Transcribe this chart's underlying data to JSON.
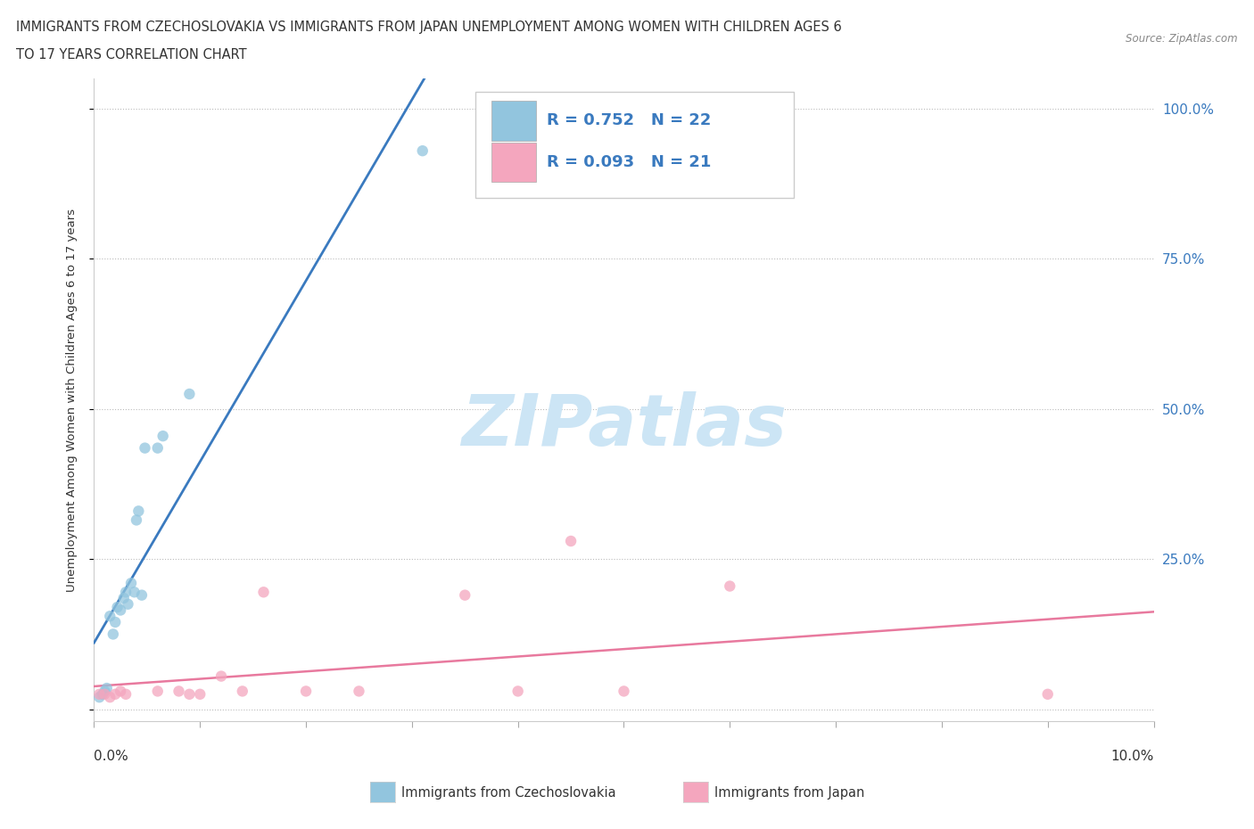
{
  "title_line1": "IMMIGRANTS FROM CZECHOSLOVAKIA VS IMMIGRANTS FROM JAPAN UNEMPLOYMENT AMONG WOMEN WITH CHILDREN AGES 6",
  "title_line2": "TO 17 YEARS CORRELATION CHART",
  "source_text": "Source: ZipAtlas.com",
  "ylabel": "Unemployment Among Women with Children Ages 6 to 17 years",
  "legend1_label": "Immigrants from Czechoslovakia",
  "legend2_label": "Immigrants from Japan",
  "r1_text": "R = 0.752",
  "n1_text": "N = 22",
  "r2_text": "R = 0.093",
  "n2_text": "N = 21",
  "czech_color": "#92c5de",
  "japan_color": "#f4a6be",
  "czech_line_color": "#3a7abf",
  "japan_line_color": "#e8799e",
  "text_color_blue": "#3a7abf",
  "text_color_dark": "#2d3a4a",
  "watermark_color": "#cce5f5",
  "xlim": [
    0.0,
    0.1
  ],
  "ylim": [
    -0.02,
    1.05
  ],
  "yticks": [
    0.0,
    0.25,
    0.5,
    0.75,
    1.0
  ],
  "ytick_labels": [
    "",
    "25.0%",
    "50.0%",
    "75.0%",
    "100.0%"
  ],
  "czech_x": [
    0.0005,
    0.0008,
    0.001,
    0.0012,
    0.0015,
    0.0018,
    0.002,
    0.0022,
    0.0025,
    0.0028,
    0.003,
    0.0032,
    0.0035,
    0.0038,
    0.004,
    0.0042,
    0.0045,
    0.0048,
    0.006,
    0.0065,
    0.009,
    0.031
  ],
  "czech_y": [
    0.02,
    0.025,
    0.03,
    0.035,
    0.155,
    0.125,
    0.145,
    0.17,
    0.165,
    0.185,
    0.195,
    0.175,
    0.21,
    0.195,
    0.315,
    0.33,
    0.19,
    0.435,
    0.435,
    0.455,
    0.525,
    0.93
  ],
  "japan_x": [
    0.0005,
    0.001,
    0.0015,
    0.002,
    0.0025,
    0.003,
    0.006,
    0.008,
    0.009,
    0.01,
    0.012,
    0.014,
    0.016,
    0.02,
    0.025,
    0.035,
    0.04,
    0.045,
    0.05,
    0.06,
    0.09
  ],
  "japan_y": [
    0.025,
    0.025,
    0.02,
    0.025,
    0.03,
    0.025,
    0.03,
    0.03,
    0.025,
    0.025,
    0.055,
    0.03,
    0.195,
    0.03,
    0.03,
    0.19,
    0.03,
    0.28,
    0.03,
    0.205,
    0.025
  ]
}
